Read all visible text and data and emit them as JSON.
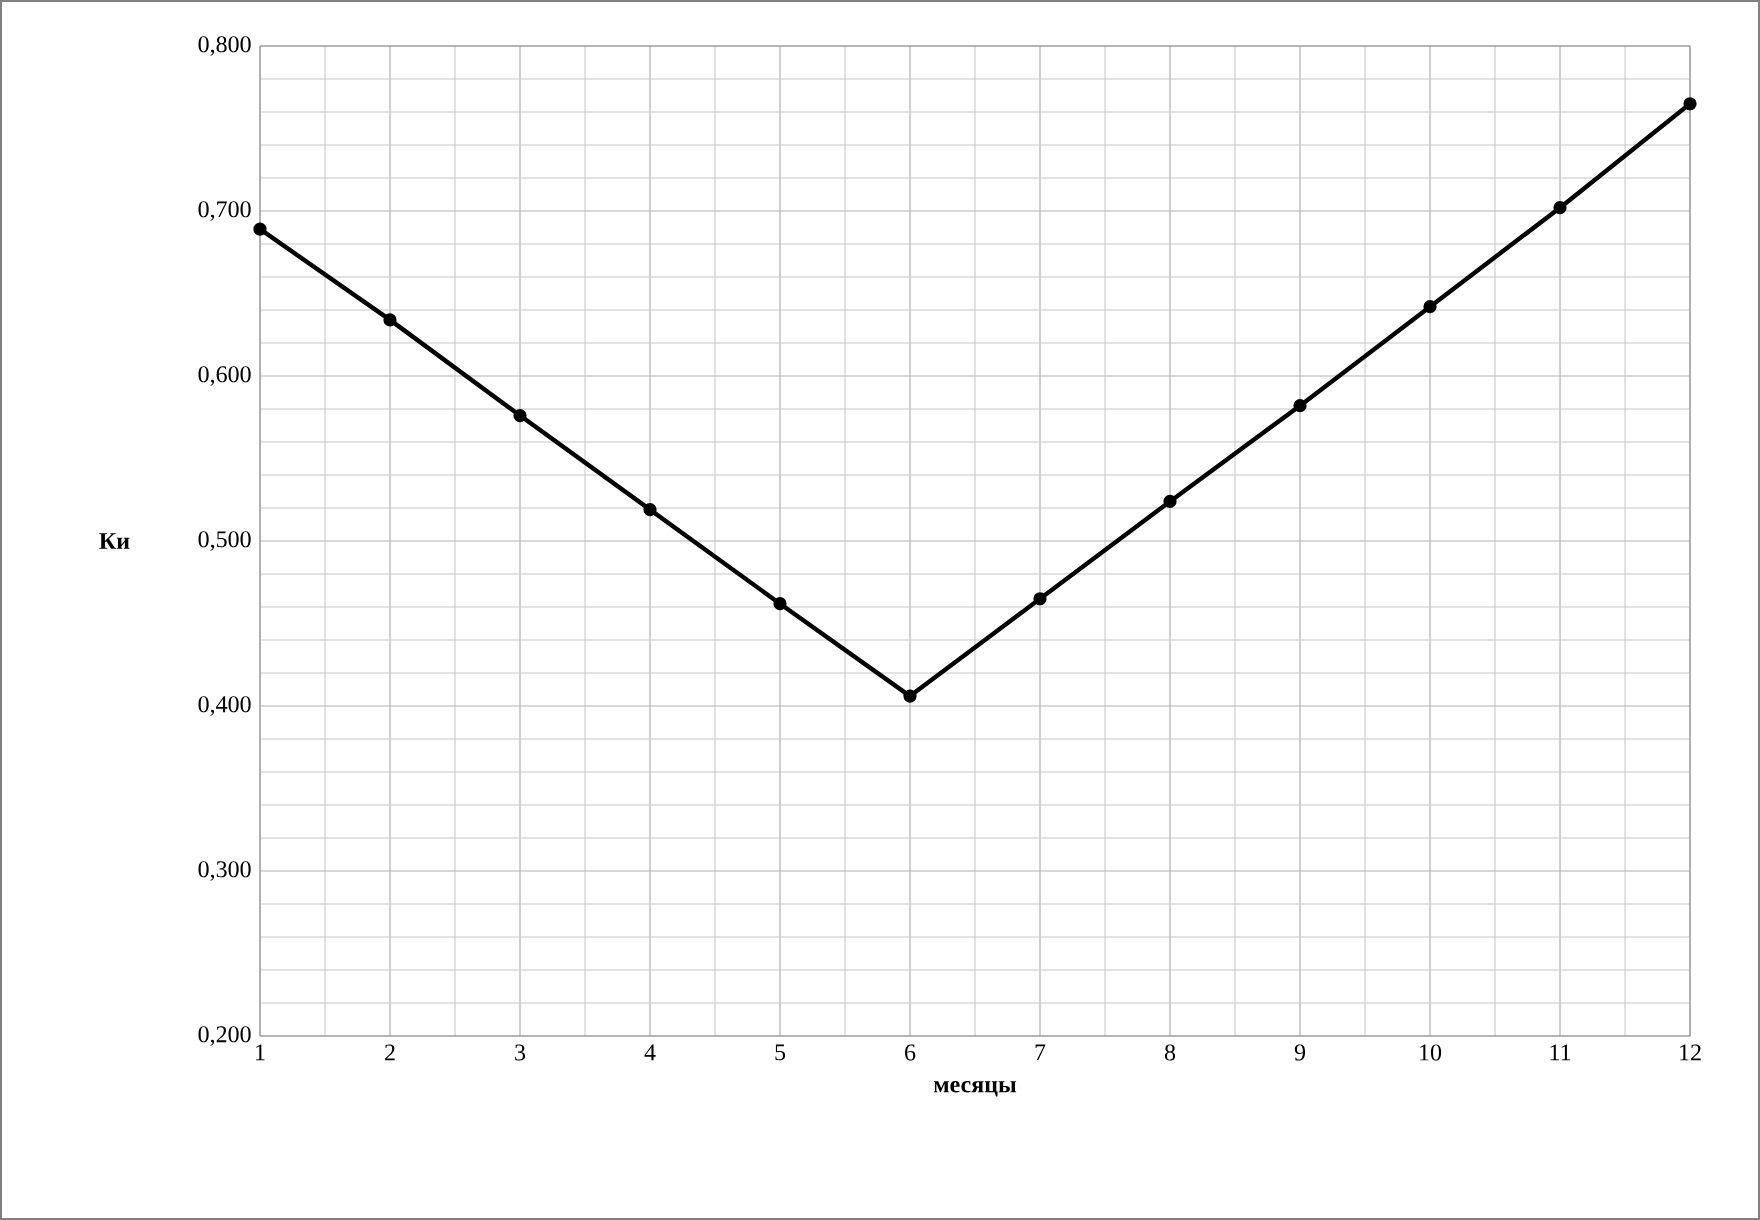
{
  "chart_data": {
    "type": "line",
    "xlabel": "месяцы",
    "ylabel": "Ки",
    "x": [
      1,
      2,
      3,
      4,
      5,
      6,
      7,
      8,
      9,
      10,
      11,
      12
    ],
    "series": [
      {
        "color": "#000000",
        "values": [
          0.689,
          0.634,
          0.576,
          0.519,
          0.462,
          0.406,
          0.465,
          0.524,
          0.582,
          0.642,
          0.702,
          0.765
        ]
      }
    ],
    "xlim": [
      1,
      12
    ],
    "xticks": [
      1,
      2,
      3,
      4,
      5,
      6,
      7,
      8,
      9,
      10,
      11,
      12
    ],
    "ylim": [
      0.2,
      0.8
    ],
    "yticks": [
      {
        "value": 0.2,
        "label": "0,200"
      },
      {
        "value": 0.3,
        "label": "0,300"
      },
      {
        "value": 0.4,
        "label": "0,400"
      },
      {
        "value": 0.5,
        "label": "0,500"
      },
      {
        "value": 0.6,
        "label": "0,600"
      },
      {
        "value": 0.7,
        "label": "0,700"
      },
      {
        "value": 0.8,
        "label": "0,800"
      }
    ],
    "grid": true,
    "marker": "circle",
    "line_style": "solid"
  }
}
